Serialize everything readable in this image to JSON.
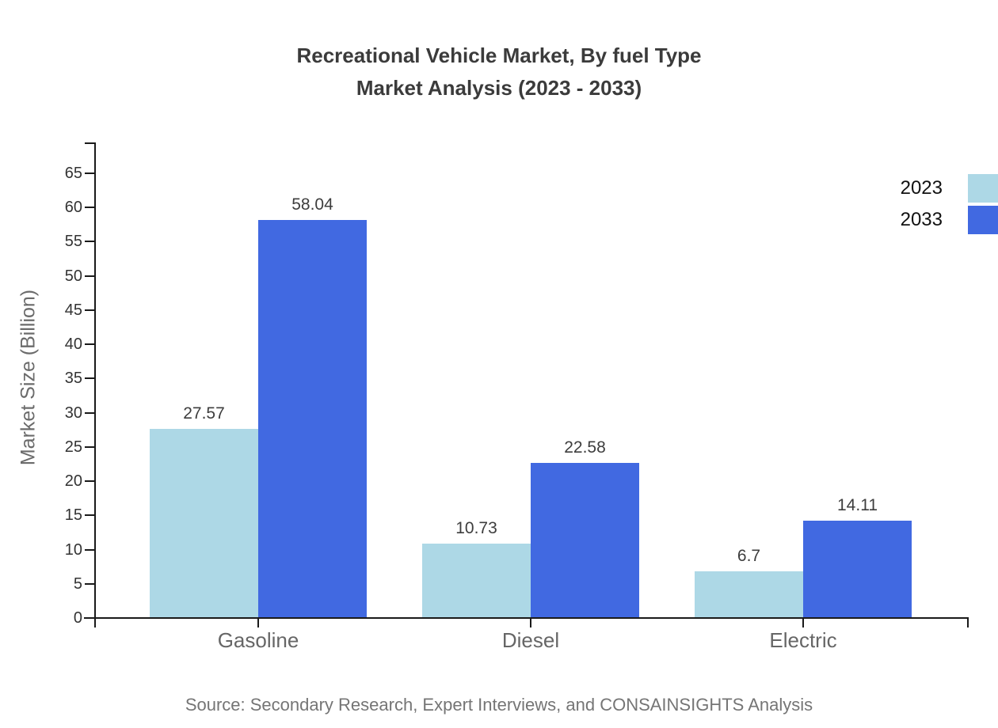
{
  "title": {
    "line1": "Recreational Vehicle Market, By fuel Type",
    "line2": "Market Analysis (2023 - 2033)"
  },
  "source": "Source: Secondary Research, Expert Interviews, and CONSAINSIGHTS Analysis",
  "chart_data": {
    "type": "bar",
    "title": "Recreational Vehicle Market, By fuel Type Market Analysis (2023 - 2033)",
    "categories": [
      "Gasoline",
      "Diesel",
      "Electric"
    ],
    "series": [
      {
        "name": "2023",
        "color": "#ADD8E6",
        "values": [
          27.57,
          10.73,
          6.7
        ]
      },
      {
        "name": "2033",
        "color": "#4169E1",
        "values": [
          58.04,
          22.58,
          14.11
        ]
      }
    ],
    "xlabel": "",
    "ylabel": "Market Size (Billion)",
    "ylim": [
      0,
      65
    ],
    "ytick_step": 5,
    "yticks": [
      0,
      5,
      10,
      15,
      20,
      25,
      30,
      35,
      40,
      45,
      50,
      55,
      60,
      65
    ],
    "grid": false,
    "value_labels": true,
    "legend_position": "top-right"
  },
  "colors": {
    "series_2023": "#ADD8E6",
    "series_2033": "#4169E1",
    "axis": "#1a1a1a",
    "title_text": "#3b3b3b",
    "category_text": "#666666",
    "source_text": "#757575"
  }
}
